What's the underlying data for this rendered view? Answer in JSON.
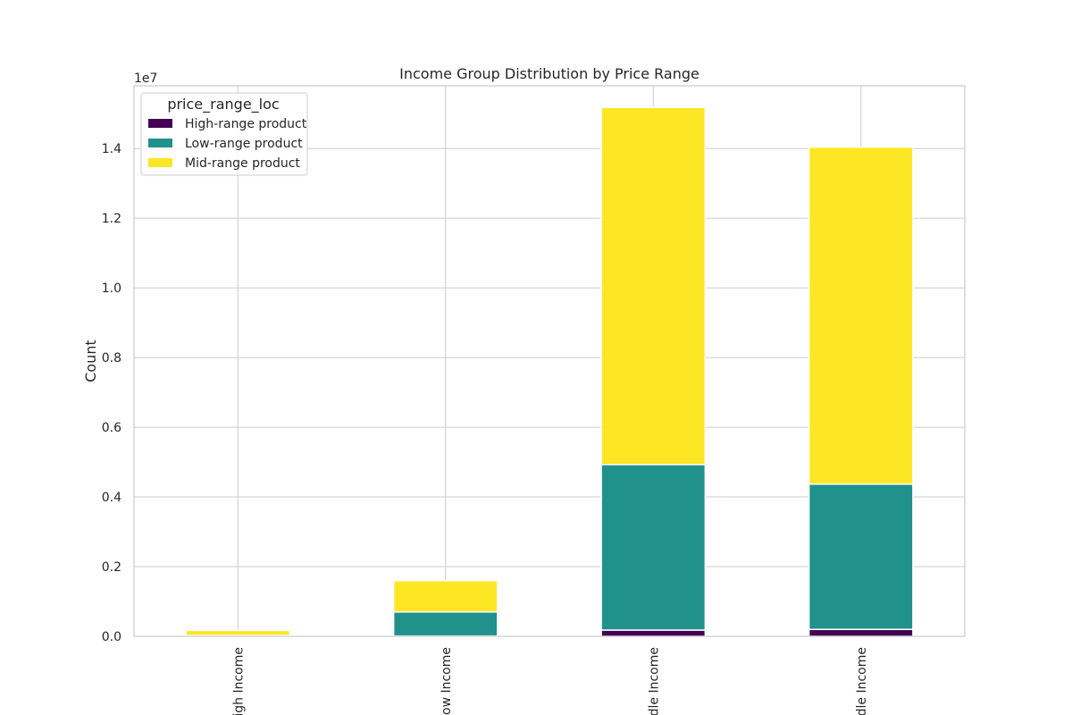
{
  "chart_data": {
    "type": "bar",
    "stacked": true,
    "title": "Income Group Distribution by Price Range",
    "xlabel": "",
    "ylabel": "Count",
    "y_offset_label": "1e7",
    "ylim": [
      0,
      15800000
    ],
    "y_ticks": [
      0,
      2000000,
      4000000,
      6000000,
      8000000,
      10000000,
      12000000,
      14000000
    ],
    "y_tick_labels": [
      "0.0",
      "0.2",
      "0.4",
      "0.6",
      "0.8",
      "1.0",
      "1.2",
      "1.4"
    ],
    "categories": [
      "High Income",
      "Low Income",
      "Middle Income",
      "Upper-Middle Income"
    ],
    "category_labels_visible": [
      "igh Income",
      "ow Income",
      "dle Income",
      "dle Income"
    ],
    "series": [
      {
        "name": "High-range product",
        "color": "#440154",
        "values": [
          5000,
          10000,
          180000,
          200000
        ]
      },
      {
        "name": "Low-range product",
        "color": "#21918c",
        "values": [
          20000,
          690000,
          4750000,
          4170000
        ]
      },
      {
        "name": "Mid-range product",
        "color": "#fde725",
        "values": [
          145000,
          900000,
          10250000,
          9670000
        ]
      }
    ],
    "legend": {
      "title": "price_range_loc",
      "position": "top-left"
    },
    "grid": true
  }
}
